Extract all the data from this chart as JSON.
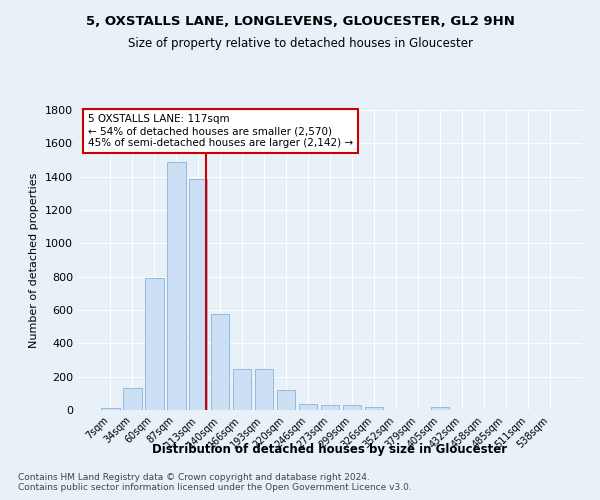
{
  "title1": "5, OXSTALLS LANE, LONGLEVENS, GLOUCESTER, GL2 9HN",
  "title2": "Size of property relative to detached houses in Gloucester",
  "xlabel": "Distribution of detached houses by size in Gloucester",
  "ylabel": "Number of detached properties",
  "categories": [
    "7sqm",
    "34sqm",
    "60sqm",
    "87sqm",
    "113sqm",
    "140sqm",
    "166sqm",
    "193sqm",
    "220sqm",
    "246sqm",
    "273sqm",
    "299sqm",
    "326sqm",
    "352sqm",
    "379sqm",
    "405sqm",
    "432sqm",
    "458sqm",
    "485sqm",
    "511sqm",
    "538sqm"
  ],
  "values": [
    15,
    135,
    790,
    1490,
    1385,
    575,
    245,
    245,
    120,
    35,
    28,
    28,
    18,
    0,
    0,
    20,
    0,
    0,
    0,
    0,
    0
  ],
  "bar_color": "#cce0f5",
  "bar_edge_color": "#8ab4d4",
  "vline_color": "#cc0000",
  "annotation_text": "5 OXSTALLS LANE: 117sqm\n← 54% of detached houses are smaller (2,570)\n45% of semi-detached houses are larger (2,142) →",
  "annotation_box_color": "#ffffff",
  "annotation_box_edge": "#cc0000",
  "footnote1": "Contains HM Land Registry data © Crown copyright and database right 2024.",
  "footnote2": "Contains public sector information licensed under the Open Government Licence v3.0.",
  "bg_color": "#e8f0f8",
  "ylim": [
    0,
    1800
  ],
  "yticks": [
    0,
    200,
    400,
    600,
    800,
    1000,
    1200,
    1400,
    1600,
    1800
  ]
}
